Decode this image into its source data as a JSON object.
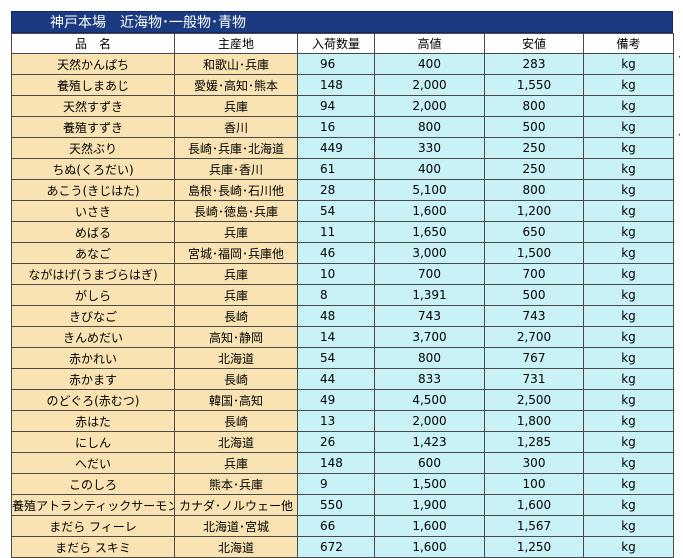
{
  "title": "神戸本場　近海物･一般物･青物",
  "headers": [
    "品　名",
    "主産地",
    "入荷数量",
    "高値",
    "安値",
    "備考"
  ],
  "rows": [
    {
      "name": "天然かんぱち",
      "origin": "和歌山･兵庫",
      "qty": "96",
      "high": "400",
      "low": "283",
      "unit": "kg"
    },
    {
      "name": "養殖しまあじ",
      "origin": "愛媛･高知･熊本",
      "qty": "148",
      "high": "2,000",
      "low": "1,550",
      "unit": "kg"
    },
    {
      "name": "天然すずき",
      "origin": "兵庫",
      "qty": "94",
      "high": "2,000",
      "low": "800",
      "unit": "kg"
    },
    {
      "name": "養殖すずき",
      "origin": "香川",
      "qty": "16",
      "high": "800",
      "low": "500",
      "unit": "kg"
    },
    {
      "name": "天然ぶり",
      "origin": "長崎･兵庫･北海道",
      "qty": "449",
      "high": "330",
      "low": "250",
      "unit": "kg"
    },
    {
      "name": "ちぬ(くろだい)",
      "origin": "兵庫･香川",
      "qty": "61",
      "high": "400",
      "low": "250",
      "unit": "kg"
    },
    {
      "name": "あこう(きじはた)",
      "origin": "島根･長崎･石川他",
      "qty": "28",
      "high": "5,100",
      "low": "800",
      "unit": "kg"
    },
    {
      "name": "いさき",
      "origin": "長崎･徳島･兵庫",
      "qty": "54",
      "high": "1,600",
      "low": "1,200",
      "unit": "kg"
    },
    {
      "name": "めばる",
      "origin": "兵庫",
      "qty": "11",
      "high": "1,650",
      "low": "650",
      "unit": "kg"
    },
    {
      "name": "あなご",
      "origin": "宮城･福岡･兵庫他",
      "qty": "46",
      "high": "3,000",
      "low": "1,500",
      "unit": "kg"
    },
    {
      "name": "ながはげ(うまづらはぎ)",
      "origin": "兵庫",
      "qty": "10",
      "high": "700",
      "low": "700",
      "unit": "kg"
    },
    {
      "name": "がしら",
      "origin": "兵庫",
      "qty": "8",
      "high": "1,391",
      "low": "500",
      "unit": "kg"
    },
    {
      "name": "きびなご",
      "origin": "長崎",
      "qty": "48",
      "high": "743",
      "low": "743",
      "unit": "kg"
    },
    {
      "name": "きんめだい",
      "origin": "高知･静岡",
      "qty": "14",
      "high": "3,700",
      "low": "2,700",
      "unit": "kg"
    },
    {
      "name": "赤かれい",
      "origin": "北海道",
      "qty": "54",
      "high": "800",
      "low": "767",
      "unit": "kg"
    },
    {
      "name": "赤かます",
      "origin": "長崎",
      "qty": "44",
      "high": "833",
      "low": "731",
      "unit": "kg"
    },
    {
      "name": "のどぐろ(赤むつ)",
      "origin": "韓国･高知",
      "qty": "49",
      "high": "4,500",
      "low": "2,500",
      "unit": "kg"
    },
    {
      "name": "赤はた",
      "origin": "長崎",
      "qty": "13",
      "high": "2,000",
      "low": "1,800",
      "unit": "kg"
    },
    {
      "name": "にしん",
      "origin": "北海道",
      "qty": "26",
      "high": "1,423",
      "low": "1,285",
      "unit": "kg"
    },
    {
      "name": "へだい",
      "origin": "兵庫",
      "qty": "148",
      "high": "600",
      "low": "300",
      "unit": "kg"
    },
    {
      "name": "このしろ",
      "origin": "熊本･兵庫",
      "qty": "9",
      "high": "1,500",
      "low": "100",
      "unit": "kg"
    },
    {
      "name": "養殖アトランティックサーモン",
      "origin": "カナダ･ノルウェー他",
      "qty": "550",
      "high": "1,900",
      "low": "1,600",
      "unit": "kg"
    },
    {
      "name": "まだら フィーレ",
      "origin": "北海道･宮城",
      "qty": "66",
      "high": "1,600",
      "low": "1,567",
      "unit": "kg"
    },
    {
      "name": "まだら スキミ",
      "origin": "北海道",
      "qty": "672",
      "high": "1,600",
      "low": "1,250",
      "unit": "kg"
    }
  ]
}
